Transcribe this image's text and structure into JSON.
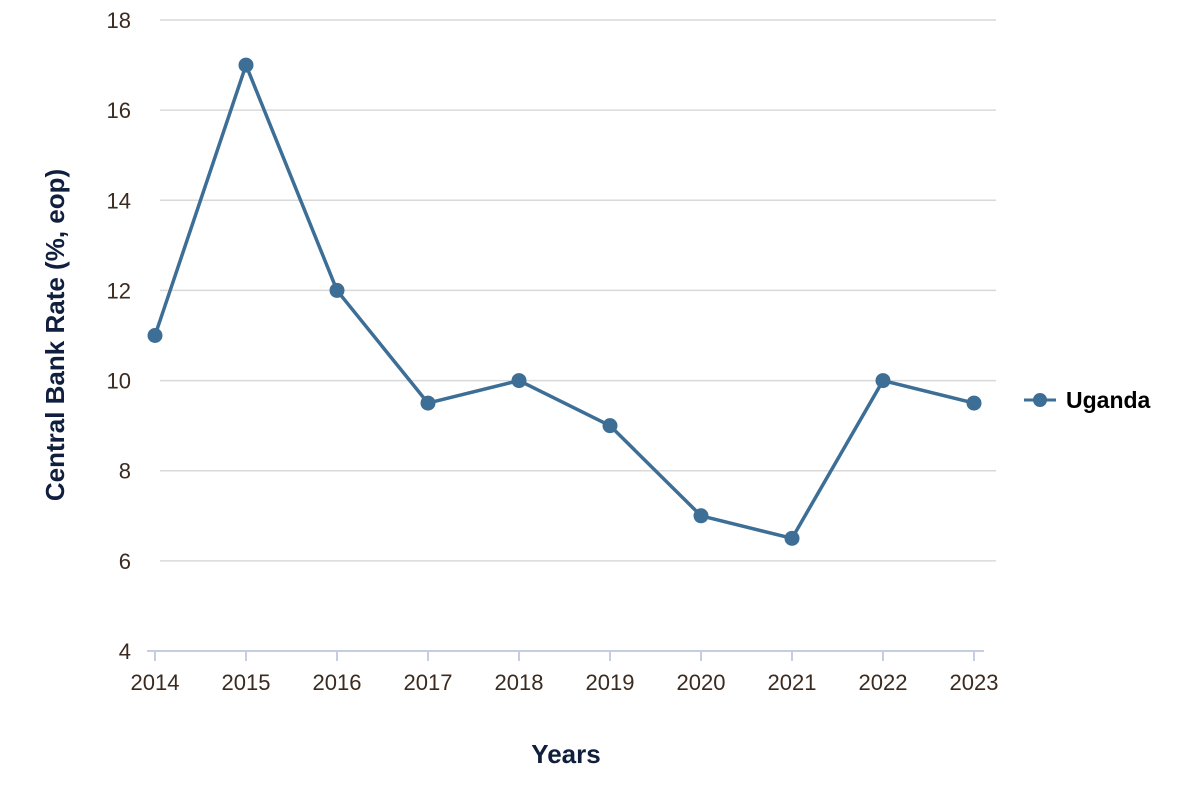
{
  "chart_data": {
    "type": "line",
    "title": "",
    "xlabel": "Years",
    "ylabel": "Central Bank Rate (%, eop)",
    "x": [
      "2014",
      "2015",
      "2016",
      "2017",
      "2018",
      "2019",
      "2020",
      "2021",
      "2022",
      "2023"
    ],
    "series": [
      {
        "name": "Uganda",
        "color": "#3d6e96",
        "values": [
          11,
          17,
          12,
          9.5,
          10,
          9,
          7,
          6.5,
          10,
          9.5
        ]
      }
    ],
    "ylim": [
      4,
      18
    ],
    "yticks": [
      "4",
      "6",
      "8",
      "10",
      "12",
      "14",
      "16",
      "18"
    ],
    "grid": true,
    "legend_position": "right"
  },
  "colors": {
    "series": "#3d6e96",
    "grid": "#d9d9d9",
    "axis": "#c5cde0",
    "tick_text": "#3b2a1f",
    "axis_title": "#0f1f3d"
  }
}
